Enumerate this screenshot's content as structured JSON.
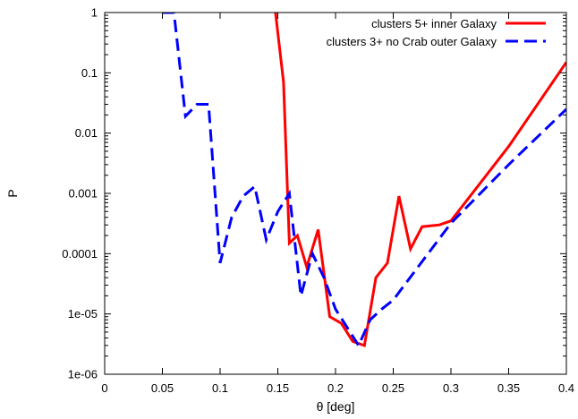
{
  "chart_data": {
    "type": "line",
    "title": "",
    "xlabel": "θ [deg]",
    "ylabel": "P",
    "xlim": [
      0,
      0.4
    ],
    "ylim": [
      1e-06,
      1
    ],
    "yscale": "log",
    "grid": false,
    "legend_position": "top-right",
    "x_ticks": [
      0,
      0.05,
      0.1,
      0.15,
      0.2,
      0.25,
      0.3,
      0.35,
      0.4
    ],
    "x_tick_labels": [
      "0",
      "0.05",
      "0.1",
      "0.15",
      "0.2",
      "0.25",
      "0.3",
      "0.35",
      "0.4"
    ],
    "y_ticks": [
      1e-06,
      1e-05,
      0.0001,
      0.001,
      0.01,
      0.1,
      1
    ],
    "y_tick_labels": [
      "1e-06",
      "1e-05",
      "0.0001",
      "0.001",
      "0.01",
      "0.1",
      "1"
    ],
    "series": [
      {
        "name": "clusters 5+  inner Galaxy",
        "color": "#ff0000",
        "style": "solid",
        "points": [
          [
            0.148,
            1.0
          ],
          [
            0.155,
            0.07
          ],
          [
            0.16,
            0.00015
          ],
          [
            0.167,
            0.0002
          ],
          [
            0.175,
            6e-05
          ],
          [
            0.185,
            0.00025
          ],
          [
            0.195,
            9e-06
          ],
          [
            0.205,
            7e-06
          ],
          [
            0.215,
            3.5e-06
          ],
          [
            0.225,
            3e-06
          ],
          [
            0.235,
            4e-05
          ],
          [
            0.245,
            7e-05
          ],
          [
            0.255,
            0.0009
          ],
          [
            0.265,
            0.00012
          ],
          [
            0.275,
            0.00028
          ],
          [
            0.29,
            0.0003
          ],
          [
            0.3,
            0.00035
          ],
          [
            0.35,
            0.006
          ],
          [
            0.4,
            0.15
          ]
        ]
      },
      {
        "name": "clusters 3+ no Crab outer Galaxy",
        "color": "#0000ff",
        "style": "dashed",
        "points": [
          [
            0.05,
            1.0
          ],
          [
            0.06,
            1.0
          ],
          [
            0.07,
            0.019
          ],
          [
            0.08,
            0.03
          ],
          [
            0.09,
            0.03
          ],
          [
            0.1,
            7e-05
          ],
          [
            0.11,
            0.0004
          ],
          [
            0.12,
            0.0009
          ],
          [
            0.13,
            0.0013
          ],
          [
            0.14,
            0.00017
          ],
          [
            0.15,
            0.0005
          ],
          [
            0.16,
            0.001
          ],
          [
            0.17,
            2e-05
          ],
          [
            0.18,
            0.0001
          ],
          [
            0.19,
            4e-05
          ],
          [
            0.2,
            1.2e-05
          ],
          [
            0.21,
            6e-06
          ],
          [
            0.22,
            3e-06
          ],
          [
            0.23,
            8e-06
          ],
          [
            0.24,
            1.2e-05
          ],
          [
            0.25,
            1.7e-05
          ],
          [
            0.3,
            0.00032
          ],
          [
            0.35,
            0.003
          ],
          [
            0.4,
            0.025
          ]
        ]
      }
    ]
  }
}
